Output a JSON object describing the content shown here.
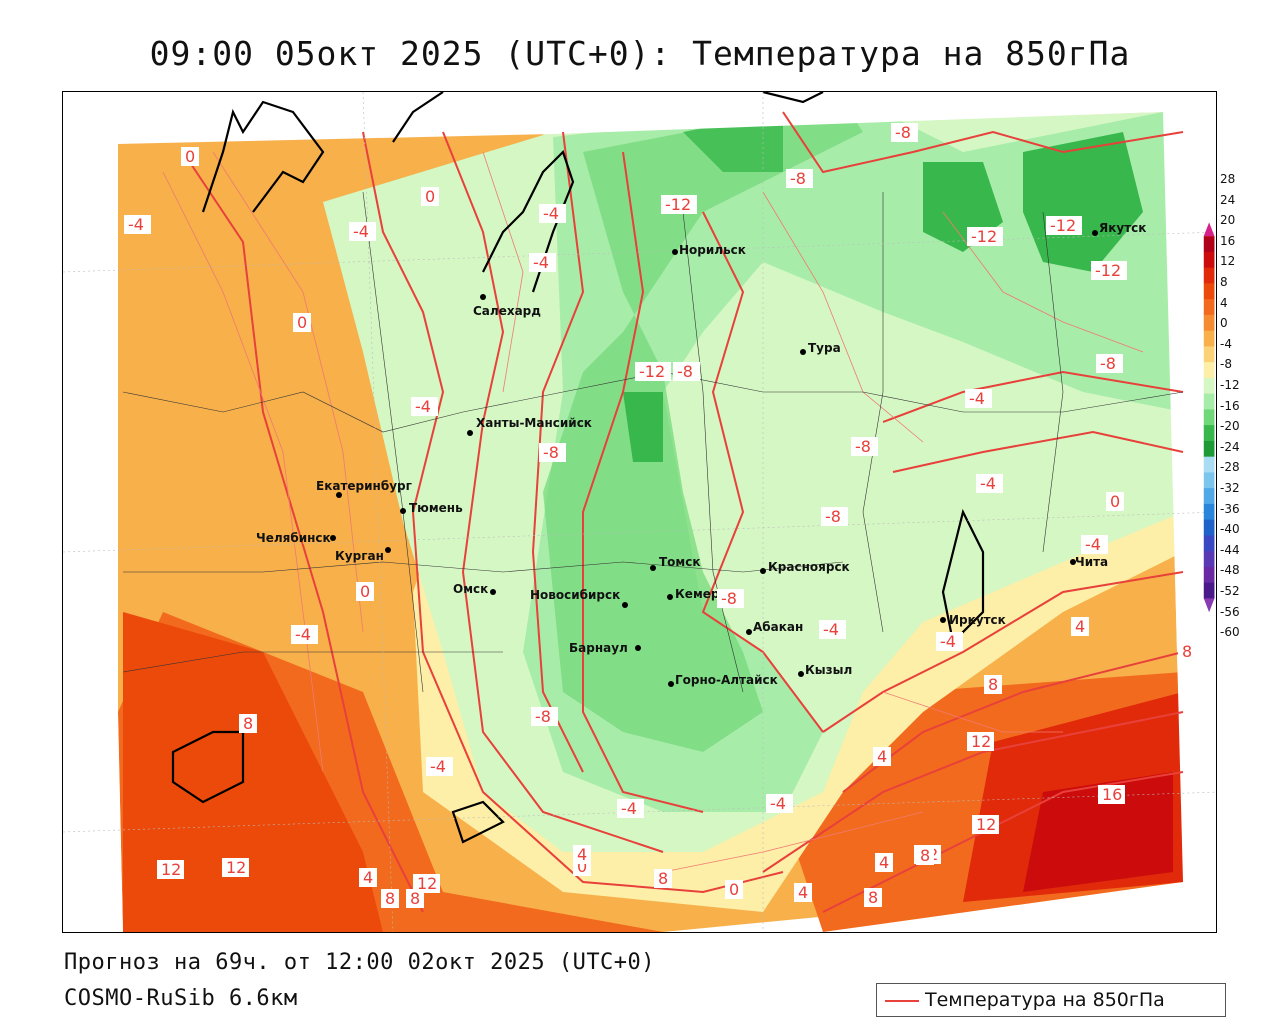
{
  "title": "09:00 05окт 2025 (UTC+0): Температура на 850гПа",
  "footer": {
    "forecast": "Прогноз на 69ч. от 12:00 02окт 2025 (UTC+0)",
    "model": "COSMO-RuSib 6.6км"
  },
  "legend": {
    "label": "Температура на 850гПа",
    "line_color": "#e8403a"
  },
  "colorbar": {
    "labels": [
      "28",
      "24",
      "20",
      "16",
      "12",
      "8",
      "4",
      "0",
      "-4",
      "-8",
      "-12",
      "-16",
      "-20",
      "-24",
      "-28",
      "-32",
      "-36",
      "-40",
      "-44",
      "-48",
      "-52",
      "-56",
      "-60"
    ],
    "colors": [
      "#b0001a",
      "#cc0c0c",
      "#e02a0a",
      "#ec4a0a",
      "#f26a1e",
      "#f58c32",
      "#f7b04a",
      "#fbd278",
      "#fdeea8",
      "#d4f7c4",
      "#a8ecaa",
      "#70d878",
      "#38b84c",
      "#1e9a36",
      "#aadcf4",
      "#7cc6ee",
      "#50a8e6",
      "#2a86da",
      "#1f62c8",
      "#3a48c4",
      "#5a3ab4",
      "#6a2aa4",
      "#4a1a8a"
    ],
    "top_arrow_color": "#d8208a",
    "bottom_arrow_color": "#8a3ab0"
  },
  "cities": [
    {
      "name": "Салехард"
    },
    {
      "name": "Норильск"
    },
    {
      "name": "Якутск"
    },
    {
      "name": "Тура"
    },
    {
      "name": "Ханты-Мансийск"
    },
    {
      "name": "Екатеринбург"
    },
    {
      "name": "Тюмень"
    },
    {
      "name": "Челябинск"
    },
    {
      "name": "Курган"
    },
    {
      "name": "Омск"
    },
    {
      "name": "Новосибирск"
    },
    {
      "name": "Томск"
    },
    {
      "name": "Кемерово"
    },
    {
      "name": "Красноярск"
    },
    {
      "name": "Барнаул"
    },
    {
      "name": "Абакан"
    },
    {
      "name": "Горно-Алтайск"
    },
    {
      "name": "Кызыл"
    },
    {
      "name": "Иркутск"
    },
    {
      "name": "Чита"
    }
  ],
  "isotherm_labels": [
    "0",
    "0",
    "-4",
    "-4",
    "-4",
    "-4",
    "-12",
    "-8",
    "-8",
    "-12",
    "-12",
    "-12",
    "0",
    "-12",
    "-8",
    "-4",
    "-8",
    "-8",
    "-8",
    "-8",
    "-4",
    "-4",
    "0",
    "-4",
    "-8",
    "-4",
    "-4",
    "4",
    "-4",
    "8",
    "0",
    "8",
    "12",
    "4",
    "8",
    "-4",
    "-8",
    "-4",
    "-4",
    "4",
    "0",
    "0",
    "4",
    "12",
    "12",
    "16",
    "12",
    "8",
    "8",
    "12",
    "12",
    "4",
    "8",
    "8",
    "8",
    "4"
  ]
}
